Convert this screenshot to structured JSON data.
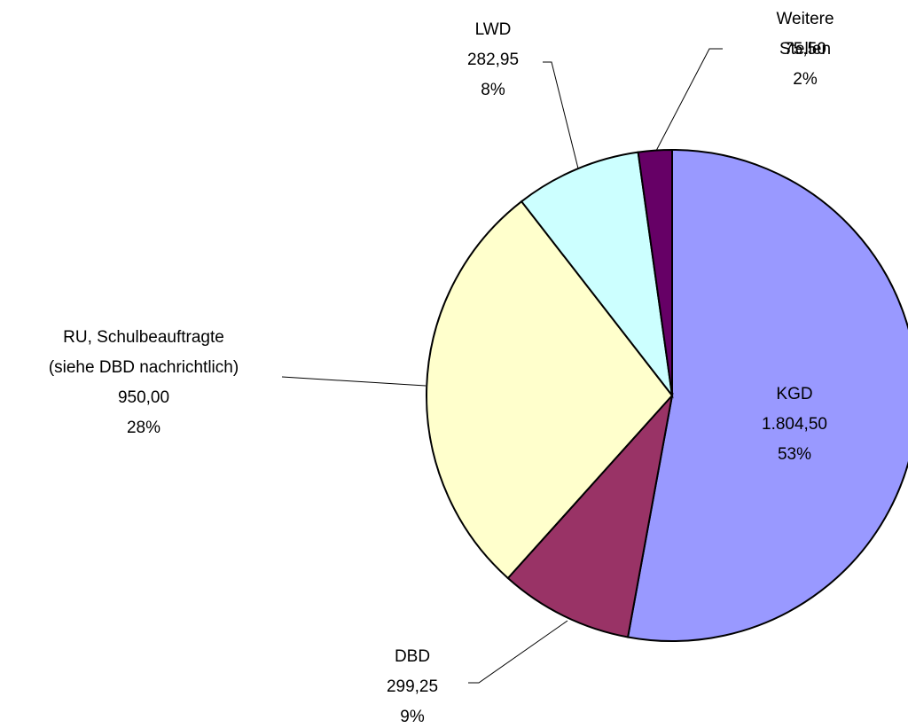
{
  "chart_data": {
    "type": "pie",
    "categories": [
      "KGD",
      "DBD",
      "RU, Schulbeauftragte\n(siehe DBD nachrichtlich)",
      "LWD",
      "Weitere Stellen"
    ],
    "values": [
      1804.5,
      299.25,
      950.0,
      282.95,
      75.5
    ],
    "value_labels": [
      "1.804,50",
      "299,25",
      "950,00",
      "282,95",
      "75,50"
    ],
    "percents": [
      53,
      9,
      28,
      8,
      2
    ],
    "percent_labels": [
      "53%",
      "9%",
      "28%",
      "8%",
      "2%"
    ],
    "colors": [
      "#9999ff",
      "#993366",
      "#ffffcc",
      "#ccffff",
      "#660066"
    ]
  }
}
